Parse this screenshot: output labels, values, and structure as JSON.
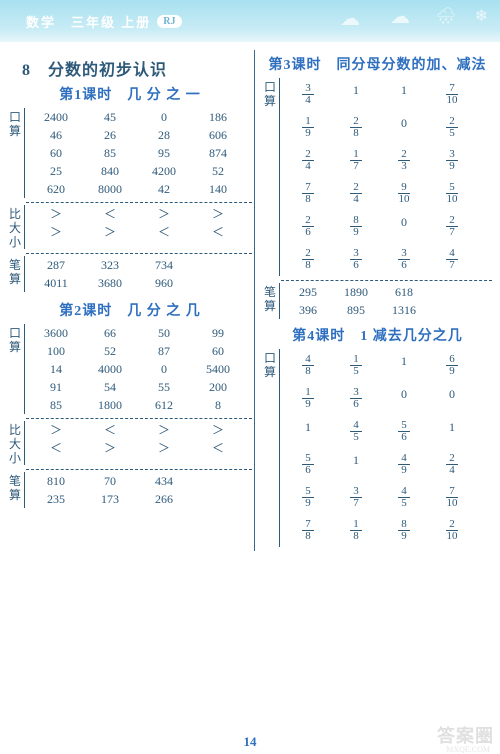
{
  "header": {
    "title": "数学　三年级 上册",
    "badge": "RJ"
  },
  "chapter": "8　分数的初步认识",
  "left": {
    "lesson1": {
      "title": "第1课时　几 分 之 一",
      "kousuan_label": "口算",
      "kousuan": [
        [
          "2400",
          "45",
          "0",
          "186"
        ],
        [
          "46",
          "26",
          "28",
          "606"
        ],
        [
          "60",
          "85",
          "95",
          "874"
        ],
        [
          "25",
          "840",
          "4200",
          "52"
        ],
        [
          "620",
          "8000",
          "42",
          "140"
        ]
      ],
      "bidaxiao_label": "比大小",
      "bidaxiao": [
        [
          "＞",
          "＜",
          "＞",
          "＞"
        ],
        [
          "＞",
          "＞",
          "＜",
          "＜"
        ]
      ],
      "bisuan_label": "笔算",
      "bisuan": [
        [
          "287",
          "323",
          "734",
          ""
        ],
        [
          "4011",
          "3680",
          "960",
          ""
        ]
      ]
    },
    "lesson2": {
      "title": "第2课时　几 分 之 几",
      "kousuan_label": "口算",
      "kousuan": [
        [
          "3600",
          "66",
          "50",
          "99"
        ],
        [
          "100",
          "52",
          "87",
          "60"
        ],
        [
          "14",
          "4000",
          "0",
          "5400"
        ],
        [
          "91",
          "54",
          "55",
          "200"
        ],
        [
          "85",
          "1800",
          "612",
          "8"
        ]
      ],
      "bidaxiao_label": "比大小",
      "bidaxiao": [
        [
          "＞",
          "＜",
          "＞",
          "＞"
        ],
        [
          "＜",
          "＞",
          "＞",
          "＜"
        ]
      ],
      "bisuan_label": "笔算",
      "bisuan": [
        [
          "810",
          "70",
          "434",
          ""
        ],
        [
          "235",
          "173",
          "266",
          ""
        ]
      ]
    }
  },
  "right": {
    "lesson3": {
      "title": "第3课时　同分母分数的加、减法",
      "kousuan_label": "口算",
      "kousuan": [
        [
          [
            "3",
            "4"
          ],
          "1",
          "1",
          [
            "7",
            "10"
          ]
        ],
        [
          [
            "1",
            "9"
          ],
          [
            "2",
            "8"
          ],
          "0",
          [
            "2",
            "5"
          ]
        ],
        [
          [
            "2",
            "4"
          ],
          [
            "1",
            "7"
          ],
          [
            "2",
            "3"
          ],
          [
            "3",
            "9"
          ]
        ],
        [
          [
            "7",
            "8"
          ],
          [
            "2",
            "4"
          ],
          [
            "9",
            "10"
          ],
          [
            "5",
            "10"
          ]
        ],
        [
          [
            "2",
            "6"
          ],
          [
            "8",
            "9"
          ],
          "0",
          [
            "2",
            "7"
          ]
        ],
        [
          [
            "2",
            "8"
          ],
          [
            "3",
            "6"
          ],
          [
            "3",
            "6"
          ],
          [
            "4",
            "7"
          ]
        ]
      ],
      "bisuan_label": "笔算",
      "bisuan": [
        [
          "295",
          "1890",
          "618",
          ""
        ],
        [
          "396",
          "895",
          "1316",
          ""
        ]
      ]
    },
    "lesson4": {
      "title": "第4课时　1 减去几分之几",
      "kousuan_label": "口算",
      "kousuan": [
        [
          [
            "4",
            "8"
          ],
          [
            "1",
            "5"
          ],
          "1",
          [
            "6",
            "9"
          ]
        ],
        [
          [
            "1",
            "9"
          ],
          [
            "3",
            "6"
          ],
          "0",
          "0"
        ],
        [
          "1",
          [
            "4",
            "5"
          ],
          [
            "5",
            "6"
          ],
          "1"
        ],
        [
          [
            "5",
            "6"
          ],
          "1",
          [
            "4",
            "9"
          ],
          [
            "2",
            "4"
          ]
        ],
        [
          [
            "5",
            "9"
          ],
          [
            "3",
            "7"
          ],
          [
            "4",
            "5"
          ],
          [
            "7",
            "10"
          ]
        ],
        [
          [
            "7",
            "8"
          ],
          [
            "1",
            "8"
          ],
          [
            "8",
            "9"
          ],
          [
            "2",
            "10"
          ]
        ]
      ]
    }
  },
  "page_number": "14",
  "watermark": "答案圈",
  "watermark_sub": "MXQE.COM",
  "col_widths": {
    "c4": [
      54,
      54,
      54,
      54
    ],
    "c4r": [
      48,
      48,
      48,
      48
    ]
  }
}
